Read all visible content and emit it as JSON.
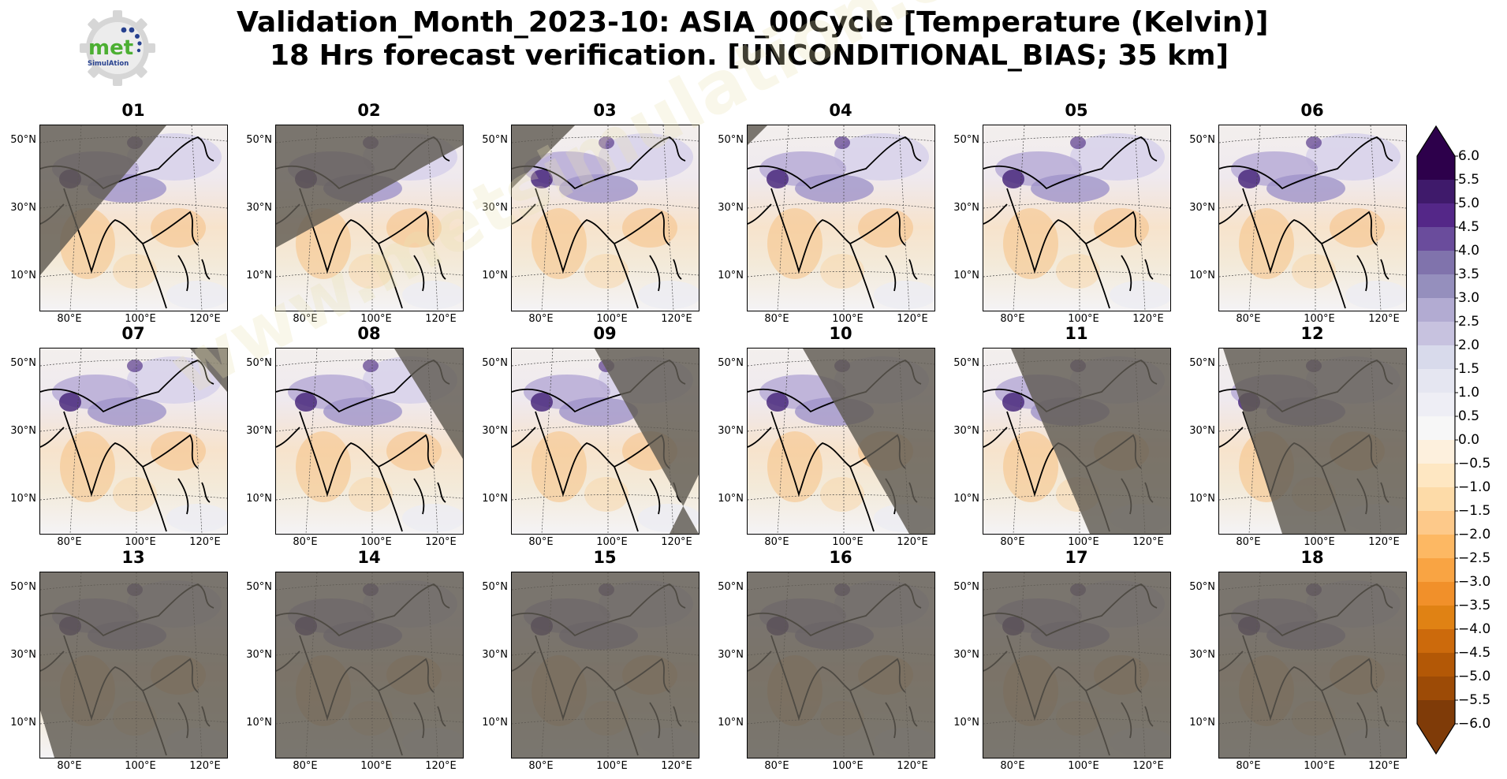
{
  "figure": {
    "title_line1": "Validation_Month_2023-10: ASIA_00Cycle [Temperature (Kelvin)]",
    "title_line2": "18 Hrs forecast verification. [UNCONDITIONAL_BIAS; 35 km]",
    "logo": {
      "text_main": "met",
      "text_sub": "SimulAtion",
      "icon": "gear-logo-icon"
    },
    "watermark_text": "www.metsimulation.com"
  },
  "map_axes": {
    "lat_ticks": [
      "50°N",
      "30°N",
      "10°N"
    ],
    "lon_ticks": [
      "80°E",
      "100°E",
      "120°E"
    ]
  },
  "panels": [
    {
      "label": "01",
      "shade": "west"
    },
    {
      "label": "02",
      "shade": "northwest"
    },
    {
      "label": "03",
      "shade": "corner-nw"
    },
    {
      "label": "04",
      "shade": "tiny-nw"
    },
    {
      "label": "05",
      "shade": "none"
    },
    {
      "label": "06",
      "shade": "none"
    },
    {
      "label": "07",
      "shade": "corner-ne"
    },
    {
      "label": "08",
      "shade": "northeast"
    },
    {
      "label": "09",
      "shade": "east"
    },
    {
      "label": "10",
      "shade": "east-wide"
    },
    {
      "label": "11",
      "shade": "most"
    },
    {
      "label": "12",
      "shade": "almost-all"
    },
    {
      "label": "13",
      "shade": "full-sliver"
    },
    {
      "label": "14",
      "shade": "full"
    },
    {
      "label": "15",
      "shade": "full"
    },
    {
      "label": "16",
      "shade": "full"
    },
    {
      "label": "17",
      "shade": "full"
    },
    {
      "label": "18",
      "shade": "full"
    }
  ],
  "colorbar": {
    "ticks": [
      "6.0",
      "5.5",
      "5.0",
      "4.5",
      "4.0",
      "3.5",
      "3.0",
      "2.5",
      "2.0",
      "1.5",
      "1.0",
      "0.5",
      "0.0",
      "−0.5",
      "−1.0",
      "−1.5",
      "−2.0",
      "−2.5",
      "−3.0",
      "−3.5",
      "−4.0",
      "−4.5",
      "−5.0",
      "−5.5",
      "−6.0"
    ],
    "range": [
      -6.0,
      6.0
    ],
    "extend": "both",
    "colormap": "PuOr",
    "colors": [
      "#2d004b",
      "#3f1a6b",
      "#542788",
      "#6a4c9c",
      "#8073ac",
      "#958fbd",
      "#b2abd2",
      "#c7c2df",
      "#d8daeb",
      "#e5e6f1",
      "#eeeef5",
      "#f7f7f7",
      "#fdf0dd",
      "#fee7c2",
      "#fddba8",
      "#fdc98a",
      "#fdb863",
      "#f9a443",
      "#f1902a",
      "#e08214",
      "#cc6a0c",
      "#b35806",
      "#9d4b06",
      "#7f3b08"
    ]
  }
}
